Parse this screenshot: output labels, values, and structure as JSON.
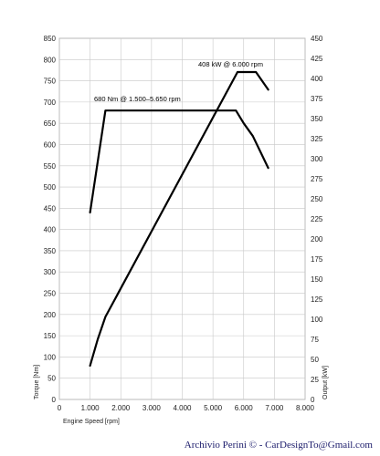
{
  "chart_data": {
    "type": "line",
    "xlabel": "Engine Speed [rpm]",
    "ylabel_left": "Torque [Nm]",
    "ylabel_right": "Output [kW]",
    "xlim": [
      0,
      8000
    ],
    "ylim_left": [
      0,
      850
    ],
    "ylim_right": [
      0,
      450
    ],
    "x_ticks": [
      "0",
      "1.000",
      "2.000",
      "3.000",
      "4.000",
      "5.000",
      "6.000",
      "7.000",
      "8.000"
    ],
    "y_ticks_left": [
      "0",
      "50",
      "100",
      "150",
      "200",
      "250",
      "300",
      "350",
      "400",
      "450",
      "500",
      "550",
      "600",
      "650",
      "700",
      "750",
      "800",
      "850"
    ],
    "y_ticks_right": [
      "0",
      "25",
      "50",
      "75",
      "100",
      "125",
      "150",
      "175",
      "200",
      "225",
      "250",
      "275",
      "300",
      "325",
      "350",
      "375",
      "400",
      "425",
      "450"
    ],
    "grid": true,
    "series": [
      {
        "axis": "left",
        "x": [
          1000,
          1500,
          5650,
          5750,
          6000,
          6300,
          6800
        ],
        "values": [
          440,
          680,
          680,
          680,
          650,
          620,
          545
        ]
      },
      {
        "axis": "right",
        "x": [
          1000,
          1250,
          1500,
          5800,
          6100,
          6400,
          6800
        ],
        "values": [
          42,
          75,
          103,
          408,
          408,
          408,
          386
        ]
      }
    ],
    "annotations": [
      {
        "text": "680 Nm @ 1.500–5.650 rpm"
      },
      {
        "text": "408 kW @ 6.000 rpm"
      }
    ]
  },
  "footer": {
    "credit": "Archivio Perini © - CarDesignTo@Gmail.com"
  }
}
